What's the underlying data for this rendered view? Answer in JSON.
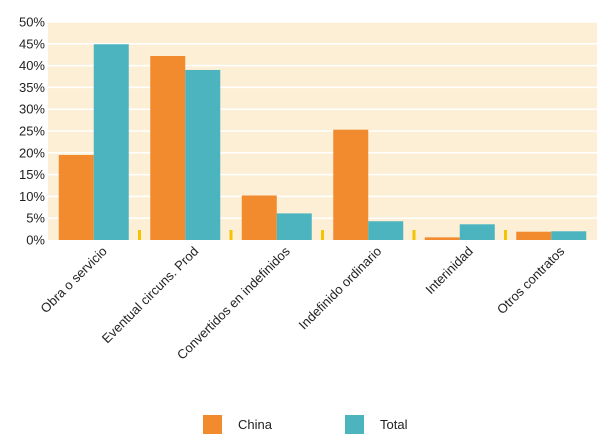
{
  "chart_data": {
    "type": "bar",
    "categories": [
      "Obra o servicio",
      "Eventual circuns. Prod",
      "Convertidos en indefinidos",
      "Indefinido ordinario",
      "Interinidad",
      "Otros contratos"
    ],
    "series": [
      {
        "name": "China",
        "color": "#f28a2e",
        "values": [
          19.5,
          42.2,
          10.2,
          25.3,
          0.6,
          1.9
        ]
      },
      {
        "name": "Total",
        "color": "#4bb4bf",
        "values": [
          44.9,
          39.0,
          6.1,
          4.3,
          3.6,
          2.0
        ]
      }
    ],
    "ylim": [
      0,
      50
    ],
    "y_ticks": [
      "0%",
      "5%",
      "10%",
      "15%",
      "20%",
      "25%",
      "30%",
      "35%",
      "40%",
      "45%",
      "50%"
    ],
    "grid": true,
    "plot_background": "#fcefd5",
    "grid_color": "#ffffff",
    "separator_color": "#f5c400",
    "legend": {
      "position": "bottom",
      "entries": [
        "China",
        "Total"
      ]
    }
  }
}
